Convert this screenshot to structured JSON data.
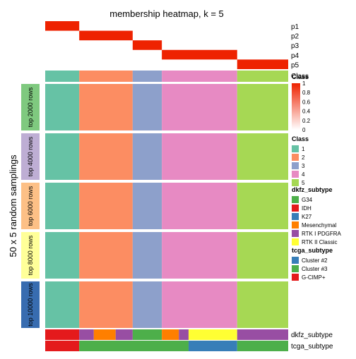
{
  "chart_data": {
    "type": "heatmap",
    "title": "membership heatmap, k = 5",
    "ylabel": "50 x 5 random samplings",
    "membership_rows": [
      "p1",
      "p2",
      "p3",
      "p4",
      "p5"
    ],
    "class_row_label": "Class",
    "membership_segments": [
      {
        "row": "p1",
        "from": 0.0,
        "to": 0.14,
        "value": 1.0
      },
      {
        "row": "p2",
        "from": 0.14,
        "to": 0.36,
        "value": 1.0
      },
      {
        "row": "p3",
        "from": 0.36,
        "to": 0.48,
        "value": 1.0
      },
      {
        "row": "p4",
        "from": 0.48,
        "to": 0.79,
        "value": 1.0
      },
      {
        "row": "p5",
        "from": 0.79,
        "to": 1.0,
        "value": 1.0
      }
    ],
    "sampling_blocks": [
      "top 2000 rows",
      "top 4000 rows",
      "top 6000 rows",
      "top 8000 rows",
      "top 10000 rows"
    ],
    "class_segments": [
      {
        "class": "1",
        "from": 0.0,
        "to": 0.14
      },
      {
        "class": "2",
        "from": 0.14,
        "to": 0.36
      },
      {
        "class": "3",
        "from": 0.36,
        "to": 0.48
      },
      {
        "class": "4",
        "from": 0.48,
        "to": 0.79
      },
      {
        "class": "5",
        "from": 0.79,
        "to": 1.0
      }
    ],
    "membership_legend": {
      "title": "Class",
      "ticks": [
        "1",
        "0.8",
        "0.6",
        "0.4",
        "0.2",
        "0"
      ]
    },
    "class_legend": {
      "title": "Class",
      "items": [
        {
          "label": "1",
          "color": "#66c2a5"
        },
        {
          "label": "2",
          "color": "#fc8d62"
        },
        {
          "label": "3",
          "color": "#8da0cb"
        },
        {
          "label": "4",
          "color": "#e78ac3"
        },
        {
          "label": "5",
          "color": "#a6d854"
        }
      ]
    },
    "dkfz_legend": {
      "title": "dkfz_subtype",
      "items": [
        {
          "label": "G34",
          "color": "#4daf4a"
        },
        {
          "label": "IDH",
          "color": "#e41a1c"
        },
        {
          "label": "K27",
          "color": "#377eb8"
        },
        {
          "label": "Mesenchymal",
          "color": "#ff7f00"
        },
        {
          "label": "RTK I PDGFRA",
          "color": "#984ea3"
        },
        {
          "label": "RTK II Classic",
          "color": "#ffff33"
        }
      ]
    },
    "tcga_legend": {
      "title": "tcga_subtype",
      "items": [
        {
          "label": "Cluster #2",
          "color": "#377eb8"
        },
        {
          "label": "Cluster #3",
          "color": "#4daf4a"
        },
        {
          "label": "G-CIMP+",
          "color": "#e41a1c"
        }
      ]
    },
    "annotation_rows": [
      "dkfz_subtype",
      "tcga_subtype"
    ],
    "dkfz_segments": [
      {
        "label": "IDH",
        "from": 0.0,
        "to": 0.14
      },
      {
        "label": "RTK I PDGFRA",
        "from": 0.14,
        "to": 0.2
      },
      {
        "label": "Mesenchymal",
        "from": 0.2,
        "to": 0.29
      },
      {
        "label": "RTK I PDGFRA",
        "from": 0.29,
        "to": 0.36
      },
      {
        "label": "G34",
        "from": 0.36,
        "to": 0.48
      },
      {
        "label": "Mesenchymal",
        "from": 0.48,
        "to": 0.55
      },
      {
        "label": "RTK I PDGFRA",
        "from": 0.55,
        "to": 0.59
      },
      {
        "label": "RTK II Classic",
        "from": 0.59,
        "to": 0.79
      },
      {
        "label": "RTK I PDGFRA",
        "from": 0.79,
        "to": 1.0
      }
    ],
    "tcga_segments": [
      {
        "label": "G-CIMP+",
        "from": 0.0,
        "to": 0.14
      },
      {
        "label": "Cluster #3",
        "from": 0.14,
        "to": 0.59
      },
      {
        "label": "Cluster #2",
        "from": 0.59,
        "to": 0.79
      },
      {
        "label": "Cluster #3",
        "from": 0.79,
        "to": 1.0
      }
    ]
  }
}
